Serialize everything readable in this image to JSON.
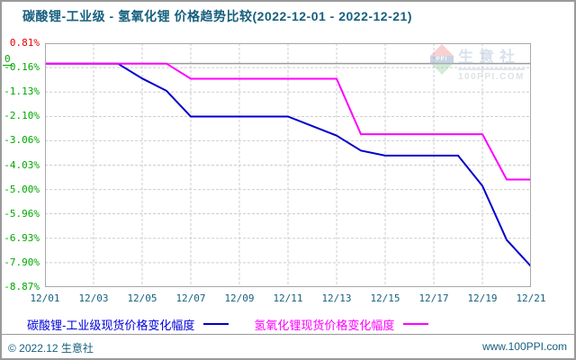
{
  "header": {
    "title": "碳酸锂-工业级 - 氢氧化锂 价格趋势比较(2022-12-01 - 2022-12-21)"
  },
  "watermark": {
    "logo": "PPI",
    "brand": "生意社",
    "site": "100PPI.COM"
  },
  "chart_data": {
    "type": "line",
    "title": "碳酸锂-工业级 - 氢氧化锂 价格趋势比较(2022-12-01 - 2022-12-21)",
    "x": [
      "12/01",
      "12/02",
      "12/03",
      "12/04",
      "12/05",
      "12/06",
      "12/07",
      "12/08",
      "12/09",
      "12/10",
      "12/11",
      "12/12",
      "12/13",
      "12/14",
      "12/15",
      "12/16",
      "12/17",
      "12/18",
      "12/19",
      "12/20",
      "12/21"
    ],
    "x_tick_labels": [
      "12/01",
      "12/03",
      "12/05",
      "12/07",
      "12/09",
      "12/11",
      "12/13",
      "12/15",
      "12/17",
      "12/19",
      "12/21"
    ],
    "y_tick_labels": [
      "0.81%",
      "-0.16%",
      "-1.13%",
      "-2.10%",
      "-3.06%",
      "-4.03%",
      "-5.00%",
      "-5.96%",
      "-6.93%",
      "-7.90%",
      "-8.87%"
    ],
    "y_tick_values": [
      0.81,
      -0.16,
      -1.13,
      -2.1,
      -3.06,
      -4.03,
      -5.0,
      -5.96,
      -6.93,
      -7.9,
      -8.87
    ],
    "zero_marker": "0",
    "ylim": [
      -8.87,
      0.81
    ],
    "grid": true,
    "legend_position": "bottom",
    "series": [
      {
        "name": "碳酸锂-工业级现货价格变化幅度",
        "color": "#0000cc",
        "values": [
          0,
          0,
          0,
          0,
          -0.59,
          -1.08,
          -2.1,
          -2.1,
          -2.1,
          -2.1,
          -2.1,
          -2.48,
          -2.86,
          -3.45,
          -3.65,
          -3.65,
          -3.65,
          -3.65,
          -4.85,
          -7.0,
          -8.05
        ]
      },
      {
        "name": "氢氧化锂现货价格变化幅度",
        "color": "#ff00ff",
        "values": [
          0,
          0,
          0,
          0,
          0,
          0,
          -0.6,
          -0.6,
          -0.6,
          -0.6,
          -0.6,
          -0.6,
          -0.6,
          -2.8,
          -2.8,
          -2.8,
          -2.8,
          -2.8,
          -2.8,
          -4.6,
          -4.6
        ]
      }
    ]
  },
  "legend": {
    "items": [
      {
        "label": "碳酸锂-工业级现货价格变化幅度",
        "color": "#0000cc"
      },
      {
        "label": "氢氧化锂现货价格变化幅度",
        "color": "#ff00ff"
      }
    ]
  },
  "footer": {
    "left": "© 2022.12 生意社",
    "right": "www.100PPI.com"
  },
  "colors": {
    "title_text": "#17607f",
    "positive_tick": "#e60000",
    "negative_tick": "#00a800",
    "grid_line": "#cdcdcd",
    "zero_line": "#9c9c9c",
    "plot_border": "#a8a8a8",
    "series_carbonate": "#0000cc",
    "series_hydroxide": "#ff00ff"
  }
}
